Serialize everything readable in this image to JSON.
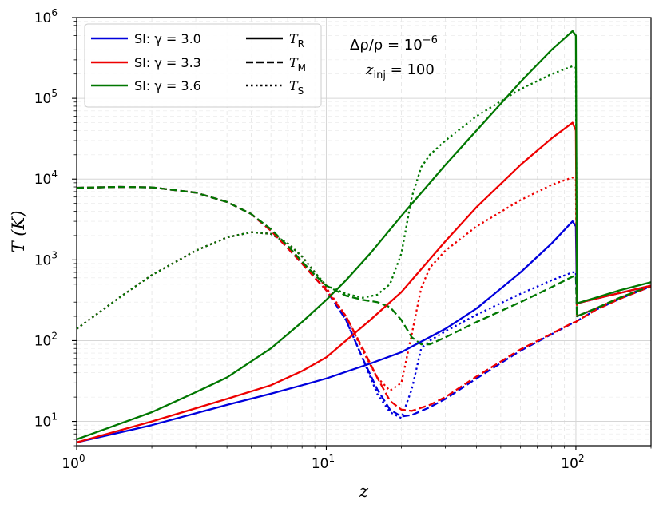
{
  "chart_data": {
    "type": "line",
    "xscale": "log",
    "yscale": "log",
    "xlim": [
      1,
      200
    ],
    "ylim": [
      5,
      1000000
    ],
    "xlabel": "z",
    "ylabel": "T (K)",
    "x_tick_labels": [
      {
        "value": 1,
        "base": "10",
        "exp": "0"
      },
      {
        "value": 10,
        "base": "10",
        "exp": "1"
      },
      {
        "value": 100,
        "base": "10",
        "exp": "2"
      }
    ],
    "y_tick_labels": [
      {
        "value": 10,
        "base": "10",
        "exp": "1"
      },
      {
        "value": 100,
        "base": "10",
        "exp": "2"
      },
      {
        "value": 1000,
        "base": "10",
        "exp": "3"
      },
      {
        "value": 10000,
        "base": "10",
        "exp": "4"
      },
      {
        "value": 100000,
        "base": "10",
        "exp": "5"
      },
      {
        "value": 1000000,
        "base": "10",
        "exp": "6"
      }
    ],
    "grid": true,
    "legend_placement": "top-left",
    "annotation": {
      "line1": "Δρ/ρ = 10",
      "line1_exp": "−6",
      "line2_var": "z",
      "line2_sub": "inj",
      "line2_rest": " = 100"
    },
    "legend_colors": [
      {
        "label": "SI: γ = 3.0",
        "color": "#0000dd"
      },
      {
        "label": "SI: γ = 3.3",
        "color": "#ee0000"
      },
      {
        "label": "SI: γ = 3.6",
        "color": "#007700"
      }
    ],
    "legend_styles": [
      {
        "var": "T",
        "sub": "R",
        "dash": "solid"
      },
      {
        "var": "T",
        "sub": "M",
        "dash": "dashed"
      },
      {
        "var": "T",
        "sub": "S",
        "dash": "dotted"
      }
    ],
    "series": [
      {
        "color": "#0000dd",
        "dash": "solid",
        "points": [
          [
            1,
            5.5
          ],
          [
            2,
            9
          ],
          [
            4,
            16
          ],
          [
            6,
            22
          ],
          [
            8,
            28
          ],
          [
            10,
            34
          ],
          [
            15,
            52
          ],
          [
            20,
            72
          ],
          [
            30,
            140
          ],
          [
            40,
            250
          ],
          [
            60,
            700
          ],
          [
            80,
            1600
          ],
          [
            97,
            3000
          ],
          [
            100,
            2600
          ],
          [
            101,
            290
          ],
          [
            120,
            330
          ],
          [
            150,
            390
          ],
          [
            200,
            480
          ]
        ]
      },
      {
        "color": "#ee0000",
        "dash": "solid",
        "points": [
          [
            1,
            5.5
          ],
          [
            2,
            10
          ],
          [
            4,
            19
          ],
          [
            6,
            28
          ],
          [
            8,
            42
          ],
          [
            10,
            62
          ],
          [
            15,
            180
          ],
          [
            20,
            400
          ],
          [
            30,
            1700
          ],
          [
            40,
            4500
          ],
          [
            60,
            15000
          ],
          [
            80,
            32000
          ],
          [
            97,
            50000
          ],
          [
            100,
            40000
          ],
          [
            101,
            290
          ],
          [
            120,
            330
          ],
          [
            150,
            390
          ],
          [
            200,
            480
          ]
        ]
      },
      {
        "color": "#007700",
        "dash": "solid",
        "points": [
          [
            1,
            6
          ],
          [
            2,
            13
          ],
          [
            3,
            23
          ],
          [
            4,
            35
          ],
          [
            6,
            80
          ],
          [
            8,
            170
          ],
          [
            10,
            320
          ],
          [
            12,
            560
          ],
          [
            15,
            1200
          ],
          [
            20,
            3500
          ],
          [
            30,
            15000
          ],
          [
            40,
            40000
          ],
          [
            60,
            160000
          ],
          [
            80,
            400000
          ],
          [
            97,
            680000
          ],
          [
            100,
            600000
          ],
          [
            101,
            290
          ],
          [
            120,
            340
          ],
          [
            150,
            420
          ],
          [
            200,
            530
          ]
        ]
      },
      {
        "color": "#0000dd",
        "dash": "dashed",
        "points": [
          [
            1,
            7800
          ],
          [
            1.5,
            8000
          ],
          [
            2,
            7900
          ],
          [
            3,
            6800
          ],
          [
            4,
            5200
          ],
          [
            5,
            3700
          ],
          [
            6,
            2300
          ],
          [
            7,
            1400
          ],
          [
            8,
            900
          ],
          [
            9,
            600
          ],
          [
            10,
            420
          ],
          [
            12,
            180
          ],
          [
            14,
            60
          ],
          [
            16,
            25
          ],
          [
            18,
            14
          ],
          [
            20,
            11.5
          ],
          [
            22,
            12
          ],
          [
            26,
            15
          ],
          [
            30,
            19
          ],
          [
            40,
            34
          ],
          [
            60,
            75
          ],
          [
            80,
            120
          ],
          [
            97,
            165
          ],
          [
            100,
            170
          ],
          [
            101,
            175
          ],
          [
            120,
            240
          ],
          [
            150,
            330
          ],
          [
            200,
            470
          ]
        ]
      },
      {
        "color": "#ee0000",
        "dash": "dashed",
        "points": [
          [
            1,
            7800
          ],
          [
            1.5,
            8000
          ],
          [
            2,
            7900
          ],
          [
            3,
            6800
          ],
          [
            4,
            5200
          ],
          [
            5,
            3700
          ],
          [
            6,
            2300
          ],
          [
            7,
            1400
          ],
          [
            8,
            900
          ],
          [
            9,
            600
          ],
          [
            10,
            420
          ],
          [
            12,
            200
          ],
          [
            14,
            80
          ],
          [
            16,
            35
          ],
          [
            18,
            18
          ],
          [
            20,
            14
          ],
          [
            22,
            13.5
          ],
          [
            26,
            16
          ],
          [
            30,
            20
          ],
          [
            40,
            36
          ],
          [
            60,
            78
          ],
          [
            80,
            122
          ],
          [
            97,
            166
          ],
          [
            100,
            170
          ],
          [
            101,
            175
          ],
          [
            120,
            240
          ],
          [
            150,
            330
          ],
          [
            200,
            470
          ]
        ]
      },
      {
        "color": "#007700",
        "dash": "dashed",
        "points": [
          [
            1,
            7800
          ],
          [
            1.5,
            8000
          ],
          [
            2,
            7900
          ],
          [
            3,
            6800
          ],
          [
            4,
            5200
          ],
          [
            5,
            3700
          ],
          [
            6,
            2400
          ],
          [
            7,
            1500
          ],
          [
            8,
            950
          ],
          [
            9,
            650
          ],
          [
            10,
            480
          ],
          [
            12,
            360
          ],
          [
            14,
            320
          ],
          [
            16,
            300
          ],
          [
            18,
            260
          ],
          [
            20,
            180
          ],
          [
            22,
            110
          ],
          [
            24,
            90
          ],
          [
            26,
            90
          ],
          [
            30,
            110
          ],
          [
            40,
            170
          ],
          [
            60,
            300
          ],
          [
            80,
            460
          ],
          [
            97,
            620
          ],
          [
            100,
            640
          ],
          [
            101,
            200
          ],
          [
            120,
            250
          ],
          [
            150,
            340
          ],
          [
            200,
            480
          ]
        ]
      },
      {
        "color": "#0000dd",
        "dash": "dotted",
        "points": [
          [
            1,
            140
          ],
          [
            1.5,
            350
          ],
          [
            2,
            650
          ],
          [
            3,
            1300
          ],
          [
            4,
            1900
          ],
          [
            5,
            2200
          ],
          [
            6,
            2100
          ],
          [
            7,
            1600
          ],
          [
            8,
            1100
          ],
          [
            9,
            700
          ],
          [
            10,
            450
          ],
          [
            12,
            180
          ],
          [
            14,
            60
          ],
          [
            16,
            22
          ],
          [
            18,
            13
          ],
          [
            20,
            11
          ],
          [
            22,
            25
          ],
          [
            24,
            80
          ],
          [
            26,
            100
          ],
          [
            30,
            130
          ],
          [
            40,
            210
          ],
          [
            60,
            380
          ],
          [
            80,
            560
          ],
          [
            97,
            700
          ],
          [
            100,
            710
          ],
          [
            101,
            200
          ],
          [
            120,
            250
          ],
          [
            150,
            340
          ],
          [
            200,
            480
          ]
        ]
      },
      {
        "color": "#ee0000",
        "dash": "dotted",
        "points": [
          [
            1,
            140
          ],
          [
            1.5,
            350
          ],
          [
            2,
            650
          ],
          [
            3,
            1300
          ],
          [
            4,
            1900
          ],
          [
            5,
            2200
          ],
          [
            6,
            2100
          ],
          [
            7,
            1600
          ],
          [
            8,
            1100
          ],
          [
            9,
            700
          ],
          [
            10,
            450
          ],
          [
            12,
            200
          ],
          [
            14,
            75
          ],
          [
            16,
            35
          ],
          [
            18,
            24
          ],
          [
            20,
            30
          ],
          [
            22,
            120
          ],
          [
            24,
            450
          ],
          [
            26,
            800
          ],
          [
            30,
            1300
          ],
          [
            40,
            2600
          ],
          [
            60,
            5500
          ],
          [
            80,
            8500
          ],
          [
            97,
            10500
          ],
          [
            100,
            10000
          ],
          [
            101,
            200
          ],
          [
            120,
            250
          ],
          [
            150,
            340
          ],
          [
            200,
            480
          ]
        ]
      },
      {
        "color": "#007700",
        "dash": "dotted",
        "points": [
          [
            1,
            140
          ],
          [
            1.5,
            350
          ],
          [
            2,
            650
          ],
          [
            3,
            1300
          ],
          [
            4,
            1900
          ],
          [
            5,
            2200
          ],
          [
            6,
            2100
          ],
          [
            7,
            1600
          ],
          [
            8,
            1100
          ],
          [
            9,
            700
          ],
          [
            10,
            480
          ],
          [
            12,
            380
          ],
          [
            14,
            340
          ],
          [
            16,
            370
          ],
          [
            18,
            500
          ],
          [
            20,
            1200
          ],
          [
            22,
            6000
          ],
          [
            24,
            14000
          ],
          [
            26,
            20000
          ],
          [
            30,
            30000
          ],
          [
            40,
            60000
          ],
          [
            60,
            130000
          ],
          [
            80,
            200000
          ],
          [
            97,
            250000
          ],
          [
            100,
            240000
          ],
          [
            101,
            200
          ],
          [
            120,
            250
          ],
          [
            150,
            340
          ],
          [
            200,
            480
          ]
        ]
      }
    ]
  }
}
